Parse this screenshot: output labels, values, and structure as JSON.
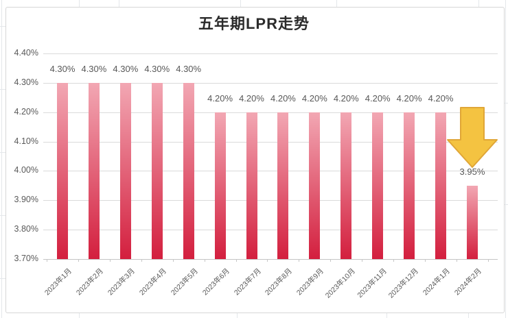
{
  "chart": {
    "title": "五年期LPR走势"
  },
  "chart_data": {
    "type": "bar",
    "title": "五年期LPR走势",
    "xlabel": "",
    "ylabel": "",
    "categories": [
      "2023年1月",
      "2023年2月",
      "2023年3月",
      "2023年4月",
      "2023年5月",
      "2023年6月",
      "2023年7月",
      "2023年8月",
      "2023年9月",
      "2023年10月",
      "2023年11月",
      "2023年12月",
      "2024年1月",
      "2024年2月"
    ],
    "values": [
      4.3,
      4.3,
      4.3,
      4.3,
      4.3,
      4.2,
      4.2,
      4.2,
      4.2,
      4.2,
      4.2,
      4.2,
      4.2,
      3.95
    ],
    "value_labels": [
      "4.30%",
      "4.30%",
      "4.30%",
      "4.30%",
      "4.30%",
      "4.20%",
      "4.20%",
      "4.20%",
      "4.20%",
      "4.20%",
      "4.20%",
      "4.20%",
      "4.20%",
      "3.95%"
    ],
    "ylim": [
      3.7,
      4.4
    ],
    "yticks": [
      4.4,
      4.3,
      4.2,
      4.1,
      4.0,
      3.9,
      3.8,
      3.7
    ],
    "ytick_labels": [
      "4.40%",
      "4.30%",
      "4.20%",
      "4.10%",
      "4.00%",
      "3.90%",
      "3.80%",
      "3.70%"
    ],
    "grid": true,
    "legend": false,
    "annotation": {
      "shape": "block-arrow-down",
      "points_at": "2024年2月",
      "highlighted_value": "3.95%"
    }
  },
  "colors": {
    "bar_top": "#F2A7B3",
    "bar_bottom": "#D31F3E",
    "arrow_fill": "#F4C341",
    "arrow_stroke": "#E0A637",
    "gridline": "#DADADA",
    "baseline": "#C4C4C4",
    "axis_text": "#595959",
    "title_text": "#2B2B2B"
  }
}
